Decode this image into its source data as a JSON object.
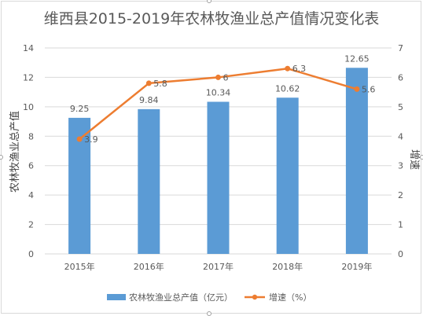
{
  "chart_data": {
    "type": "bar+line",
    "title": "维西县2015-2019年农林牧渔业总产值情况变化表",
    "categories": [
      "2015年",
      "2016年",
      "2017年",
      "2018年",
      "2019年"
    ],
    "series": [
      {
        "name": "农林牧渔业总产值（亿元）",
        "type": "bar",
        "axis": "left",
        "values": [
          9.25,
          9.84,
          10.34,
          10.62,
          12.65
        ],
        "color": "#5b9bd5"
      },
      {
        "name": "增速（%）",
        "type": "line",
        "axis": "right",
        "values": [
          3.9,
          5.8,
          6,
          6.3,
          5.6
        ],
        "labels": [
          "3.9",
          "5.8",
          "6",
          "6.3",
          "5.6"
        ],
        "color": "#ed7d31"
      }
    ],
    "ylabel": "农林牧渔业总产值",
    "y2label": "增速",
    "ylim": [
      0,
      14
    ],
    "yticks": [
      0,
      2,
      4,
      6,
      8,
      10,
      12,
      14
    ],
    "y2lim": [
      0,
      7
    ],
    "y2ticks": [
      0,
      1,
      2,
      3,
      4,
      5,
      6,
      7
    ],
    "grid": true,
    "legend": "bottom",
    "colors": {
      "bar": "#5b9bd5",
      "line": "#ed7d31",
      "grid": "#d9d9d9",
      "text": "#595959"
    }
  }
}
